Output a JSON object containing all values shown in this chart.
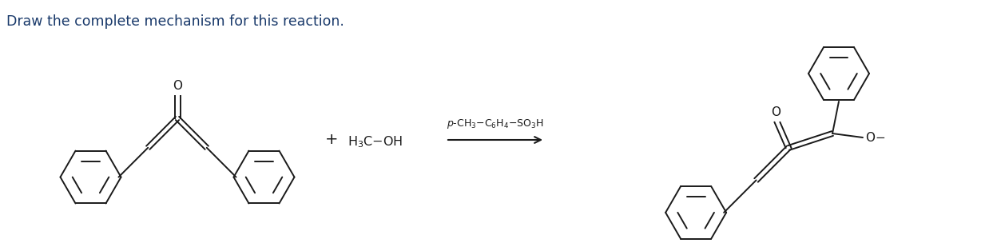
{
  "title": "Draw the complete mechanism for this reaction.",
  "title_color": "#1a3a6b",
  "title_fontsize": 12.5,
  "bg": "#ffffff",
  "lc": "#1a1a1a",
  "lw": 1.4,
  "figsize": [
    12.38,
    3.14
  ],
  "dpi": 100,
  "plus_text": "+",
  "methanol_text": "H$_3$C−OH",
  "catalyst_text": "$p$-CH$_3$−C$_6$H$_4$−SO$_3$H",
  "oxygen_text": "O",
  "omethyl_text": "O−"
}
